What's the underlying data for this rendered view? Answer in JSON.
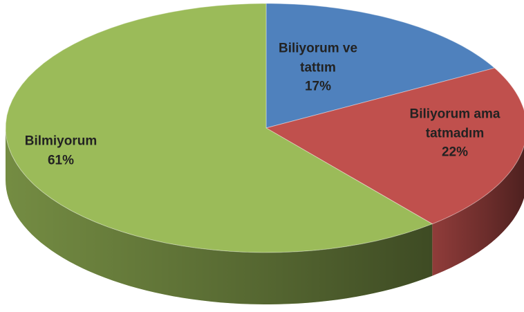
{
  "chart_data": {
    "type": "pie",
    "categories": [
      "Biliyorum ve tattım",
      "Biliyorum ama tatmadım",
      "Bilmiyorum"
    ],
    "values": [
      17,
      22,
      61
    ],
    "value_labels": [
      "17%",
      "22%",
      "61%"
    ],
    "colors": [
      "#4f81bd",
      "#c0504d",
      "#9bbb59"
    ]
  }
}
